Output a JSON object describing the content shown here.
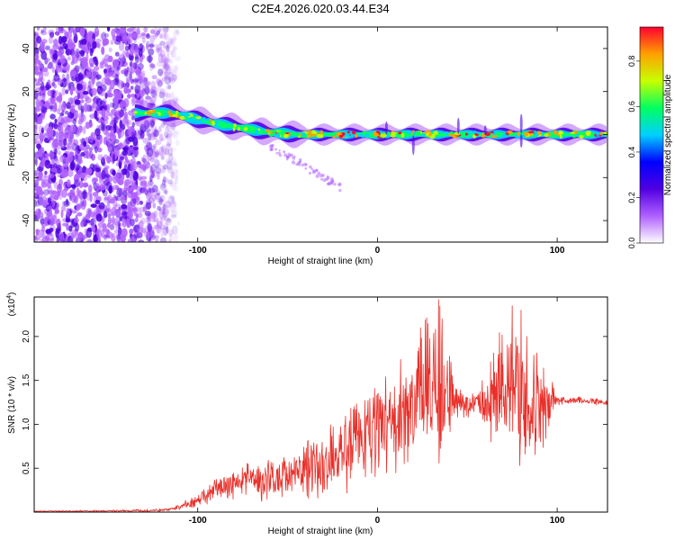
{
  "title": "C2E4.2026.020.03.44.E34",
  "chart_data": [
    {
      "type": "heatmap",
      "name": "spectrogram",
      "xlabel": "Height of straight line (km)",
      "ylabel": "Frequency (Hz)",
      "xlim": [
        -191,
        128
      ],
      "ylim": [
        -50,
        50
      ],
      "x_ticks": [
        -100,
        0,
        100
      ],
      "y_ticks": [
        -40,
        -20,
        0,
        20,
        40
      ],
      "noise_region_x": [
        -191,
        -115
      ],
      "ridge": [
        {
          "x": -135,
          "y": 10
        },
        {
          "x": -115,
          "y": 10
        },
        {
          "x": -100,
          "y": 7
        },
        {
          "x": -90,
          "y": 5
        },
        {
          "x": -75,
          "y": 3
        },
        {
          "x": -60,
          "y": 1
        },
        {
          "x": -45,
          "y": 0
        },
        {
          "x": -20,
          "y": 0
        },
        {
          "x": 0,
          "y": 0
        },
        {
          "x": 40,
          "y": 0
        },
        {
          "x": 80,
          "y": 0
        },
        {
          "x": 128,
          "y": 0
        }
      ],
      "colorbar": {
        "label": "Normalized spectral amplitude",
        "range": [
          0,
          0.95
        ],
        "ticks": [
          "0.0",
          "0.2",
          "0.4",
          "0.6",
          "0.8"
        ],
        "tick_values": [
          0,
          0.2,
          0.4,
          0.6,
          0.8
        ],
        "colors": [
          "#ffffff",
          "#b060ff",
          "#5000e0",
          "#0000ff",
          "#00d0ff",
          "#00ff60",
          "#c8ff00",
          "#ffa000",
          "#ff0030"
        ]
      }
    },
    {
      "type": "line",
      "name": "snr",
      "xlabel": "Height of straight line (km)",
      "ylabel": "SNR (10 * v/v)",
      "scale_label": "(x10",
      "scale_exponent": "4",
      "scale_close": ")",
      "xlim": [
        -191,
        128
      ],
      "ylim": [
        0,
        2.45
      ],
      "x_ticks": [
        -100,
        0,
        100
      ],
      "y_ticks": [
        0.5,
        1.0,
        1.5,
        2.0
      ],
      "y_tick_labels": [
        "0.5",
        "1.0",
        "1.5",
        "2.0"
      ],
      "color": "#e8302a",
      "envelope": [
        {
          "x": -191,
          "y": 0.01
        },
        {
          "x": -130,
          "y": 0.015
        },
        {
          "x": -115,
          "y": 0.03
        },
        {
          "x": -100,
          "y": 0.12
        },
        {
          "x": -90,
          "y": 0.25
        },
        {
          "x": -75,
          "y": 0.35
        },
        {
          "x": -60,
          "y": 0.38
        },
        {
          "x": -45,
          "y": 0.45
        },
        {
          "x": -30,
          "y": 0.55
        },
        {
          "x": -15,
          "y": 0.75
        },
        {
          "x": 0,
          "y": 0.95
        },
        {
          "x": 10,
          "y": 1.05
        },
        {
          "x": 20,
          "y": 1.2
        },
        {
          "x": 30,
          "y": 1.4
        },
        {
          "x": 40,
          "y": 1.3
        },
        {
          "x": 50,
          "y": 1.22
        },
        {
          "x": 60,
          "y": 1.3
        },
        {
          "x": 70,
          "y": 1.4
        },
        {
          "x": 80,
          "y": 1.3
        },
        {
          "x": 90,
          "y": 1.2
        },
        {
          "x": 100,
          "y": 1.27
        },
        {
          "x": 110,
          "y": 1.28
        },
        {
          "x": 128,
          "y": 1.25
        }
      ],
      "noise_amplitude": [
        {
          "x": -191,
          "y": 0.005
        },
        {
          "x": -115,
          "y": 0.02
        },
        {
          "x": -95,
          "y": 0.12
        },
        {
          "x": -60,
          "y": 0.28
        },
        {
          "x": -20,
          "y": 0.5
        },
        {
          "x": 10,
          "y": 0.7
        },
        {
          "x": 25,
          "y": 0.95
        },
        {
          "x": 35,
          "y": 1.05
        },
        {
          "x": 45,
          "y": 0.2
        },
        {
          "x": 55,
          "y": 0.15
        },
        {
          "x": 65,
          "y": 0.7
        },
        {
          "x": 80,
          "y": 1.0
        },
        {
          "x": 92,
          "y": 0.6
        },
        {
          "x": 100,
          "y": 0.06
        },
        {
          "x": 128,
          "y": 0.04
        }
      ],
      "peaks": [
        {
          "x": 24,
          "y": 2.1
        },
        {
          "x": 34,
          "y": 2.42
        },
        {
          "x": 36,
          "y": 2.2
        },
        {
          "x": 75,
          "y": 2.35
        },
        {
          "x": 80,
          "y": 2.3
        },
        {
          "x": 83,
          "y": 2.0
        }
      ]
    }
  ]
}
